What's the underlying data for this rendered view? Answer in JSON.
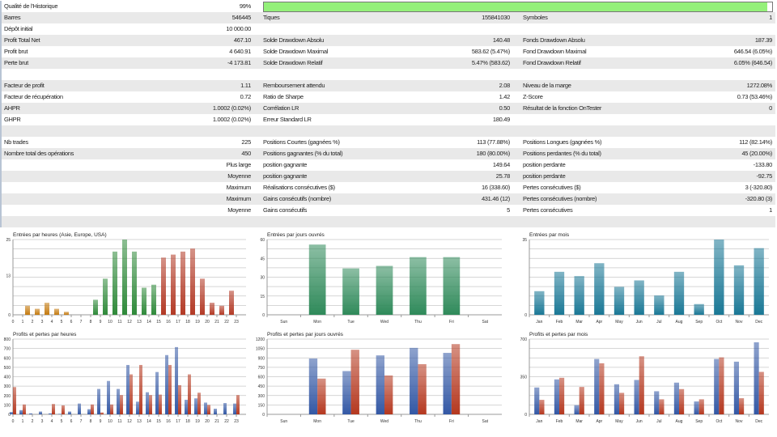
{
  "report": {
    "history_quality": {
      "label": "Qualité de l'Historique",
      "value": "99%",
      "progress_percent": 99
    },
    "rows": [
      [
        {
          "l": "Barres",
          "v": "546445"
        },
        {
          "l": "Tiques",
          "v": "155841030"
        },
        {
          "l": "Symboles",
          "v": "1"
        }
      ],
      [
        {
          "l": "Dépôt initial",
          "v": "10 000.00"
        },
        {
          "l": "",
          "v": ""
        },
        {
          "l": "",
          "v": ""
        }
      ],
      [
        {
          "l": "Profit Total Net",
          "v": "467.10"
        },
        {
          "l": "Solde Drawdown Absolu",
          "v": "140.48"
        },
        {
          "l": "Fonds Drawdown Absolu",
          "v": "187.39"
        }
      ],
      [
        {
          "l": "Profit brut",
          "v": "4 640.91"
        },
        {
          "l": "Solde Drawdown Maximal",
          "v": "583.62 (5.47%)"
        },
        {
          "l": "Fond Drawdown Maximal",
          "v": "646.54 (6.05%)"
        }
      ],
      [
        {
          "l": "Perte brut",
          "v": "-4 173.81"
        },
        {
          "l": "Solde Drawdown Relatif",
          "v": "5.47% (583.62)"
        },
        {
          "l": "Fond Drawdown Relatif",
          "v": "6.05% (646.54)"
        }
      ],
      [
        {
          "l": "",
          "v": ""
        },
        {
          "l": "",
          "v": ""
        },
        {
          "l": "",
          "v": ""
        }
      ],
      [
        {
          "l": "Facteur de profit",
          "v": "1.11"
        },
        {
          "l": "Remboursement attendu",
          "v": "2.08"
        },
        {
          "l": "Niveau de la marge",
          "v": "1272.08%"
        }
      ],
      [
        {
          "l": "Facteur de récupération",
          "v": "0.72"
        },
        {
          "l": "Ratio de Sharpe",
          "v": "1.42"
        },
        {
          "l": "Z-Score",
          "v": "0.73 (53.46%)"
        }
      ],
      [
        {
          "l": "AHPR",
          "v": "1.0002 (0.02%)"
        },
        {
          "l": "Corrélation LR",
          "v": "0.50"
        },
        {
          "l": "Résultat de la fonction OnTester",
          "v": "0"
        }
      ],
      [
        {
          "l": "GHPR",
          "v": "1.0002 (0.02%)"
        },
        {
          "l": "Erreur Standard LR",
          "v": "180.49"
        },
        {
          "l": "",
          "v": ""
        }
      ],
      [
        {
          "l": "",
          "v": ""
        },
        {
          "l": "",
          "v": ""
        },
        {
          "l": "",
          "v": ""
        }
      ],
      [
        {
          "l": "Nb trades",
          "v": "225"
        },
        {
          "l": "Positions Courtes (gagnées %)",
          "v": "113 (77.88%)"
        },
        {
          "l": "Positions Longues (gagnées %)",
          "v": "112 (82.14%)"
        }
      ],
      [
        {
          "l": "Nombre total des opérations",
          "v": "450"
        },
        {
          "l": "Positions gagnantes (% du total)",
          "v": "180 (80.00%)"
        },
        {
          "l": "Positions perdantes (% du total)",
          "v": "45 (20.00%)"
        }
      ],
      [
        {
          "l": "",
          "v": "Plus large"
        },
        {
          "l": "position gagnante",
          "v": "149.64"
        },
        {
          "l": "position perdante",
          "v": "-133.80"
        }
      ],
      [
        {
          "l": "",
          "v": "Moyenne"
        },
        {
          "l": "position gagnante",
          "v": "25.78"
        },
        {
          "l": "position perdante",
          "v": "-92.75"
        }
      ],
      [
        {
          "l": "",
          "v": "Maximum"
        },
        {
          "l": "Réalisations consécutives ($)",
          "v": "16 (338.60)"
        },
        {
          "l": "Pertes consécutives ($)",
          "v": "3 (-320.80)"
        }
      ],
      [
        {
          "l": "",
          "v": "Maximum"
        },
        {
          "l": "Gains consécutifs (nombre)",
          "v": "431.46 (12)"
        },
        {
          "l": "Pertes consécutives (nombre)",
          "v": "-320.80 (3)"
        }
      ],
      [
        {
          "l": "",
          "v": "Moyenne"
        },
        {
          "l": "Gains consécutifs",
          "v": "5"
        },
        {
          "l": "Pertes consécutives",
          "v": "1"
        }
      ],
      [
        {
          "l": "",
          "v": ""
        },
        {
          "l": "",
          "v": ""
        },
        {
          "l": "",
          "v": ""
        }
      ]
    ]
  },
  "colors": {
    "asia": "#c47a0e",
    "europe": "#2f8a3a",
    "usa": "#b33a26",
    "weekday": "#2f8a5a",
    "month": "#1a7896",
    "profit": "#3358a5",
    "loss": "#b5381f",
    "progress": "#94f07a"
  },
  "chart_data": [
    {
      "type": "bar",
      "title": "Entrées par heures (Asie, Europe, USA)",
      "categories": [
        "0",
        "1",
        "2",
        "3",
        "4",
        "5",
        "6",
        "7",
        "8",
        "9",
        "10",
        "11",
        "12",
        "13",
        "14",
        "15",
        "16",
        "17",
        "18",
        "19",
        "20",
        "21",
        "22",
        "23"
      ],
      "series": [
        {
          "values": [
            0,
            3,
            2,
            4,
            2,
            1,
            0,
            0,
            5,
            12,
            21,
            26,
            21,
            9,
            10,
            19,
            20,
            21,
            22,
            12,
            4,
            3,
            8,
            0
          ]
        }
      ],
      "bar_colors_by_session": {
        "asia": [
          0,
          7
        ],
        "europe": [
          8,
          14
        ],
        "usa": [
          15,
          23
        ]
      },
      "ylim": [
        0,
        26
      ],
      "yticks": [
        "0",
        "13",
        "25"
      ],
      "grid": true
    },
    {
      "type": "bar",
      "title": "Entrées par jours ouvrés",
      "categories": [
        "Sun",
        "Mon",
        "Tue",
        "Wed",
        "Thu",
        "Fri",
        "Sat"
      ],
      "series": [
        {
          "values": [
            0,
            56,
            37,
            39,
            46,
            46,
            0
          ]
        }
      ],
      "ylim": [
        0,
        60
      ],
      "yticks": [
        "0",
        "15",
        "30",
        "45",
        "60"
      ],
      "grid": true
    },
    {
      "type": "bar",
      "title": "Entrées par mois",
      "categories": [
        "Jan",
        "Feb",
        "Mar",
        "Apr",
        "May",
        "Jun",
        "Jul",
        "Aug",
        "Sep",
        "Oct",
        "Nov",
        "Dec"
      ],
      "series": [
        {
          "values": [
            11,
            20,
            18,
            24,
            13,
            16,
            9,
            20,
            5,
            35,
            23,
            31
          ]
        }
      ],
      "ylim": [
        0,
        35
      ],
      "yticks": [
        "0",
        "35"
      ],
      "grid": true
    },
    {
      "type": "bar",
      "title": "Profits et pertes par heures",
      "categories": [
        "0",
        "1",
        "2",
        "3",
        "4",
        "5",
        "6",
        "7",
        "8",
        "9",
        "10",
        "11",
        "12",
        "13",
        "14",
        "15",
        "16",
        "17",
        "18",
        "19",
        "20",
        "21",
        "22",
        "23"
      ],
      "series": [
        {
          "values": [
            25,
            45,
            10,
            30,
            10,
            5,
            30,
            115,
            55,
            270,
            355,
            270,
            525,
            135,
            235,
            450,
            630,
            715,
            155,
            170,
            125,
            60,
            120,
            115
          ]
        },
        {
          "values": [
            290,
            105,
            0,
            0,
            110,
            95,
            0,
            0,
            105,
            20,
            105,
            205,
            425,
            525,
            205,
            210,
            525,
            310,
            425,
            230,
            100,
            0,
            0,
            205
          ]
        }
      ],
      "ylim": [
        0,
        800
      ],
      "yticks": [
        "0",
        "100",
        "200",
        "300",
        "400",
        "500",
        "600",
        "700",
        "800"
      ],
      "grid": true
    },
    {
      "type": "bar",
      "title": "Profits et pertes par jours ouvrés",
      "categories": [
        "Sun",
        "Mon",
        "Tue",
        "Wed",
        "Thu",
        "Fri",
        "Sat"
      ],
      "series": [
        {
          "values": [
            0,
            890,
            690,
            940,
            1060,
            980,
            0
          ]
        },
        {
          "values": [
            0,
            570,
            1030,
            620,
            800,
            1120,
            0
          ]
        }
      ],
      "ylim": [
        0,
        1200
      ],
      "yticks": [
        "0",
        "150",
        "300",
        "450",
        "600",
        "750",
        "900",
        "1050",
        "1200"
      ],
      "grid": true
    },
    {
      "type": "bar",
      "title": "Profits et pertes par mois",
      "categories": [
        "Jan",
        "Feb",
        "Mar",
        "Apr",
        "May",
        "Jun",
        "Jul",
        "Aug",
        "Sep",
        "Oct",
        "Nov",
        "Dec"
      ],
      "series": [
        {
          "values": [
            250,
            325,
            85,
            515,
            280,
            320,
            215,
            295,
            120,
            515,
            490,
            670
          ]
        },
        {
          "values": [
            135,
            340,
            255,
            475,
            200,
            540,
            140,
            235,
            140,
            530,
            150,
            395
          ]
        }
      ],
      "ylim": [
        0,
        700
      ],
      "yticks": [
        "0",
        "350",
        "700"
      ],
      "grid": true
    }
  ]
}
